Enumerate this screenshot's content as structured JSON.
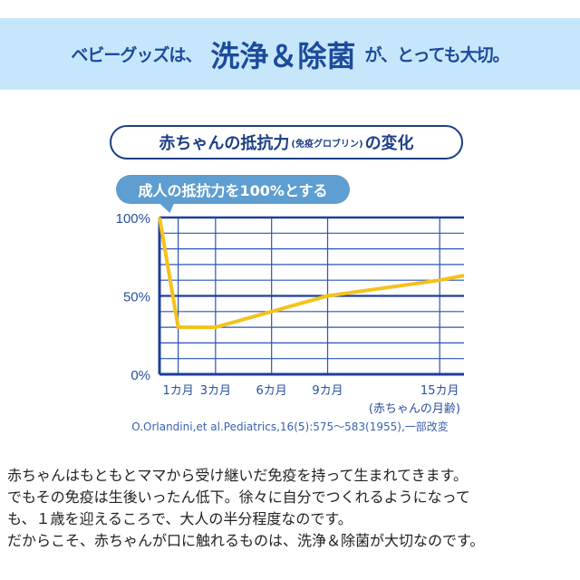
{
  "banner": {
    "prefix": "ベビーグッズは、",
    "highlight": "洗浄＆除菌",
    "suffix": "が、とっても大切。"
  },
  "chart_title": {
    "main": "赤ちゃんの抵抗力",
    "note": "(免疫グロブリン)",
    "tail": "の変化"
  },
  "callout": "成人の抵抗力を100%とする",
  "chart_data": {
    "type": "line",
    "title": "赤ちゃんの抵抗力(免疫グロブリン)の変化",
    "xlabel": "(赤ちゃんの月齢)",
    "ylabel": "",
    "xlim": [
      0,
      16.3
    ],
    "ylim": [
      0,
      100
    ],
    "x_ticks": [
      {
        "value": 1,
        "label": "1カ月"
      },
      {
        "value": 3,
        "label": "3カ月"
      },
      {
        "value": 6,
        "label": "6カ月"
      },
      {
        "value": 9,
        "label": "9カ月"
      },
      {
        "value": 15,
        "label": "15カ月"
      }
    ],
    "y_ticks": [
      {
        "value": 0,
        "label": "0%"
      },
      {
        "value": 50,
        "label": "50%"
      },
      {
        "value": 100,
        "label": "100%"
      }
    ],
    "grid": true,
    "series": [
      {
        "name": "抵抗力",
        "color": "#f5c21b",
        "x": [
          0,
          1,
          3,
          6,
          9,
          15,
          16.3
        ],
        "y": [
          100,
          30,
          30,
          40,
          50,
          60,
          63
        ]
      }
    ]
  },
  "citation": "O.Orlandini,et al.Pediatrics,16(5):575〜583(1955),一部改変",
  "body": [
    "赤ちゃんはもともとママから受け継いだ免疫を持って生まれてきます。",
    "でもその免疫は生後いったん低下。徐々に自分でつくれるようになって",
    "も、１歳を迎えるころで、大人の半分程度なのです。",
    "だからこそ、赤ちゃんが口に触れるものは、洗浄＆除菌が大切なのです。"
  ]
}
